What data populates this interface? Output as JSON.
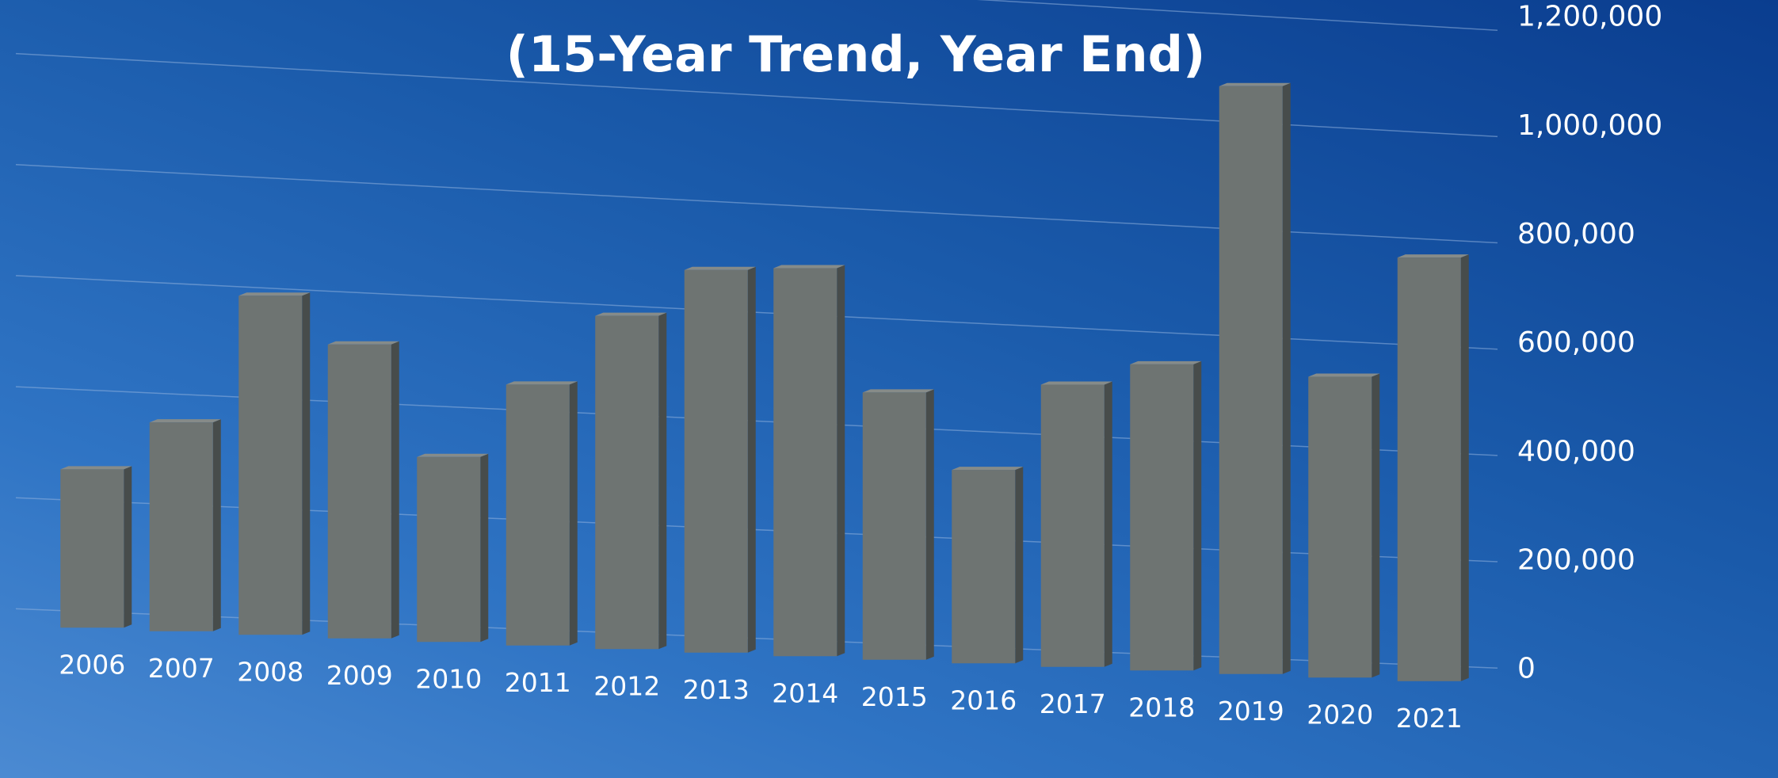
{
  "chart_data": {
    "type": "bar",
    "title": "(15-Year Trend, Year End)",
    "categories": [
      "2006",
      "2007",
      "2008",
      "2009",
      "2010",
      "2011",
      "2012",
      "2013",
      "2014",
      "2015",
      "2016",
      "2017",
      "2018",
      "2019",
      "2020",
      "2021"
    ],
    "values": [
      298000,
      393000,
      638000,
      553000,
      348000,
      491000,
      627000,
      720000,
      730000,
      503000,
      364000,
      531000,
      576000,
      1106000,
      566000,
      797000
    ],
    "ylim": [
      0,
      1200000
    ],
    "yticks": [
      "0",
      "200,000",
      "400,000",
      "600,000",
      "800,000",
      "1,000,000",
      "1,200,000"
    ],
    "xlabel": "",
    "ylabel": "",
    "grid": true,
    "legend": "none",
    "colors": {
      "bar": "#6e7472",
      "bar_side": "#474c4b",
      "bar_top": "#868b89",
      "grid": "#8fb0dc",
      "text": "#ffffff"
    }
  }
}
